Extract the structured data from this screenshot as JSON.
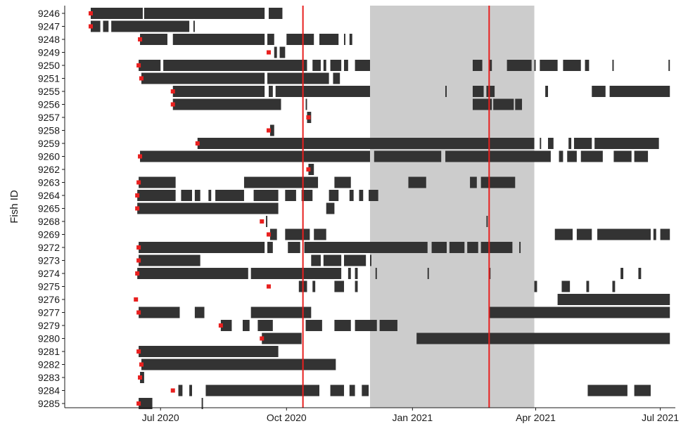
{
  "chart_data": {
    "type": "timeline",
    "ylabel": "Fish ID",
    "xlabel": "",
    "xlim": [
      "2020-04-22",
      "2021-07-12"
    ],
    "x_ticks": [
      {
        "date": "2020-07-01",
        "label": "Jul 2020"
      },
      {
        "date": "2020-10-01",
        "label": "Oct 2020"
      },
      {
        "date": "2021-01-01",
        "label": "Jan 2021"
      },
      {
        "date": "2021-04-01",
        "label": "Apr 2021"
      },
      {
        "date": "2021-07-01",
        "label": "Jul 2021"
      }
    ],
    "shaded_period": {
      "start": "2020-12-01",
      "end": "2021-03-31",
      "color": "#cccccc"
    },
    "reference_lines": [
      {
        "date": "2020-10-13",
        "color": "#e8201f"
      },
      {
        "date": "2021-02-26",
        "color": "#e8201f"
      }
    ],
    "colors": {
      "detection": "#333333",
      "tagging": "#e8201f"
    },
    "fish": [
      {
        "id": "9246",
        "tagged": "2020-05-11",
        "detections": [
          [
            "2020-05-11",
            "2020-06-18"
          ],
          [
            "2020-06-19",
            "2020-09-15"
          ],
          [
            "2020-09-18",
            "2020-09-28"
          ]
        ]
      },
      {
        "id": "9247",
        "tagged": "2020-05-11",
        "detections": [
          [
            "2020-05-11",
            "2020-05-18"
          ],
          [
            "2020-05-20",
            "2020-05-24"
          ],
          [
            "2020-05-26",
            "2020-07-22"
          ],
          [
            "2020-07-25",
            "2020-07-26"
          ]
        ]
      },
      {
        "id": "9248",
        "tagged": "2020-06-16",
        "detections": [
          [
            "2020-06-16",
            "2020-07-06"
          ],
          [
            "2020-07-10",
            "2020-09-15"
          ],
          [
            "2020-09-17",
            "2020-09-22"
          ],
          [
            "2020-10-01",
            "2020-10-21"
          ],
          [
            "2020-10-25",
            "2020-11-08"
          ],
          [
            "2020-11-12",
            "2020-11-13"
          ],
          [
            "2020-11-16",
            "2020-11-18"
          ]
        ]
      },
      {
        "id": "9249",
        "tagged": "2020-09-18",
        "detections": [
          [
            "2020-09-22",
            "2020-09-24"
          ],
          [
            "2020-09-26",
            "2020-09-30"
          ]
        ]
      },
      {
        "id": "9250",
        "tagged": "2020-06-15",
        "detections": [
          [
            "2020-06-15",
            "2020-07-01"
          ],
          [
            "2020-07-03",
            "2020-10-16"
          ],
          [
            "2020-10-20",
            "2020-10-26"
          ],
          [
            "2020-10-28",
            "2020-10-30"
          ],
          [
            "2020-11-02",
            "2020-11-10"
          ],
          [
            "2020-11-12",
            "2020-11-15"
          ],
          [
            "2020-11-20",
            "2020-12-01"
          ],
          [
            "2021-02-14",
            "2021-02-21"
          ],
          [
            "2021-02-26",
            "2021-02-28"
          ],
          [
            "2021-03-11",
            "2021-03-29"
          ],
          [
            "2021-03-31",
            "2021-04-01"
          ],
          [
            "2021-04-04",
            "2021-04-17"
          ],
          [
            "2021-04-21",
            "2021-05-04"
          ],
          [
            "2021-05-07",
            "2021-05-10"
          ],
          [
            "2021-05-27",
            "2021-05-28"
          ],
          [
            "2021-07-07",
            "2021-07-08"
          ]
        ]
      },
      {
        "id": "9251",
        "tagged": "2020-06-17",
        "detections": [
          [
            "2020-06-17",
            "2020-09-15"
          ],
          [
            "2020-09-17",
            "2020-11-01"
          ],
          [
            "2020-11-04",
            "2020-11-09"
          ]
        ]
      },
      {
        "id": "9255",
        "tagged": "2020-07-10",
        "detections": [
          [
            "2020-07-10",
            "2020-09-15"
          ],
          [
            "2020-09-18",
            "2020-09-21"
          ],
          [
            "2020-09-23",
            "2020-12-01"
          ],
          [
            "2021-01-25",
            "2021-01-26"
          ],
          [
            "2021-02-14",
            "2021-02-22"
          ],
          [
            "2021-02-24",
            "2021-03-02"
          ],
          [
            "2021-04-08",
            "2021-04-10"
          ],
          [
            "2021-05-12",
            "2021-05-22"
          ],
          [
            "2021-05-25",
            "2021-07-08"
          ]
        ]
      },
      {
        "id": "9256",
        "tagged": "2020-07-10",
        "detections": [
          [
            "2020-07-10",
            "2020-09-27"
          ],
          [
            "2020-10-15",
            "2020-10-16"
          ],
          [
            "2021-02-14",
            "2021-02-28"
          ],
          [
            "2021-03-01",
            "2021-03-16"
          ],
          [
            "2021-03-17",
            "2021-03-22"
          ]
        ]
      },
      {
        "id": "9257",
        "tagged": "2020-10-17",
        "detections": [
          [
            "2020-10-16",
            "2020-10-19"
          ]
        ]
      },
      {
        "id": "9258",
        "tagged": "2020-09-18",
        "detections": [
          [
            "2020-09-19",
            "2020-09-22"
          ]
        ]
      },
      {
        "id": "9259",
        "tagged": "2020-07-28",
        "detections": [
          [
            "2020-07-28",
            "2021-03-31"
          ],
          [
            "2021-04-04",
            "2021-04-05"
          ],
          [
            "2021-04-10",
            "2021-04-14"
          ],
          [
            "2021-04-25",
            "2021-04-27"
          ],
          [
            "2021-04-29",
            "2021-05-12"
          ],
          [
            "2021-05-14",
            "2021-06-30"
          ]
        ]
      },
      {
        "id": "9260",
        "tagged": "2020-06-16",
        "detections": [
          [
            "2020-06-16",
            "2020-12-01"
          ],
          [
            "2020-12-04",
            "2021-01-22"
          ],
          [
            "2021-01-25",
            "2021-04-12"
          ],
          [
            "2021-04-18",
            "2021-04-21"
          ],
          [
            "2021-04-24",
            "2021-05-01"
          ],
          [
            "2021-05-04",
            "2021-05-20"
          ],
          [
            "2021-05-28",
            "2021-06-10"
          ],
          [
            "2021-06-12",
            "2021-06-22"
          ]
        ]
      },
      {
        "id": "9262",
        "tagged": "2020-10-17",
        "detections": [
          [
            "2020-10-17",
            "2020-10-21"
          ]
        ]
      },
      {
        "id": "9263",
        "tagged": "2020-06-15",
        "detections": [
          [
            "2020-06-15",
            "2020-07-12"
          ],
          [
            "2020-08-31",
            "2020-10-24"
          ],
          [
            "2020-11-05",
            "2020-11-17"
          ],
          [
            "2020-12-29",
            "2021-01-11"
          ],
          [
            "2021-02-12",
            "2021-02-17"
          ],
          [
            "2021-02-20",
            "2021-03-17"
          ]
        ]
      },
      {
        "id": "9264",
        "tagged": "2020-06-14",
        "detections": [
          [
            "2020-06-14",
            "2020-07-12"
          ],
          [
            "2020-07-16",
            "2020-07-24"
          ],
          [
            "2020-07-26",
            "2020-07-30"
          ],
          [
            "2020-08-05",
            "2020-08-07"
          ],
          [
            "2020-08-10",
            "2020-08-31"
          ],
          [
            "2020-09-07",
            "2020-09-25"
          ],
          [
            "2020-09-30",
            "2020-10-08"
          ],
          [
            "2020-10-12",
            "2020-10-20"
          ],
          [
            "2020-11-01",
            "2020-11-08"
          ],
          [
            "2020-11-16",
            "2020-11-19"
          ],
          [
            "2020-11-23",
            "2020-11-26"
          ],
          [
            "2020-11-30",
            "2020-12-07"
          ]
        ]
      },
      {
        "id": "9265",
        "tagged": "2020-06-14",
        "detections": [
          [
            "2020-06-14",
            "2020-09-25"
          ],
          [
            "2020-10-30",
            "2020-11-05"
          ]
        ]
      },
      {
        "id": "9268",
        "tagged": "2020-09-13",
        "detections": [
          [
            "2020-09-16",
            "2020-09-17"
          ],
          [
            "2021-02-24",
            "2021-02-25"
          ]
        ]
      },
      {
        "id": "9269",
        "tagged": "2020-09-18",
        "detections": [
          [
            "2020-09-19",
            "2020-09-24"
          ],
          [
            "2020-09-30",
            "2020-10-18"
          ],
          [
            "2020-10-21",
            "2020-10-30"
          ],
          [
            "2021-04-15",
            "2021-04-28"
          ],
          [
            "2021-05-01",
            "2021-05-12"
          ],
          [
            "2021-05-16",
            "2021-06-24"
          ],
          [
            "2021-06-26",
            "2021-06-28"
          ],
          [
            "2021-07-01",
            "2021-07-08"
          ]
        ]
      },
      {
        "id": "9272",
        "tagged": "2020-06-15",
        "detections": [
          [
            "2020-06-15",
            "2020-09-15"
          ],
          [
            "2020-09-17",
            "2020-09-21"
          ],
          [
            "2020-10-02",
            "2020-10-11"
          ],
          [
            "2020-10-14",
            "2021-01-12"
          ],
          [
            "2021-01-15",
            "2021-01-26"
          ],
          [
            "2021-01-28",
            "2021-02-08"
          ],
          [
            "2021-02-10",
            "2021-02-18"
          ],
          [
            "2021-02-20",
            "2021-03-15"
          ],
          [
            "2021-03-20",
            "2021-03-21"
          ]
        ]
      },
      {
        "id": "9273",
        "tagged": "2020-06-15",
        "detections": [
          [
            "2020-06-15",
            "2020-07-30"
          ],
          [
            "2020-10-19",
            "2020-10-26"
          ],
          [
            "2020-10-28",
            "2020-11-10"
          ],
          [
            "2020-11-12",
            "2020-11-28"
          ],
          [
            "2020-12-01",
            "2020-12-02"
          ]
        ]
      },
      {
        "id": "9274",
        "tagged": "2020-06-14",
        "detections": [
          [
            "2020-06-14",
            "2020-09-03"
          ],
          [
            "2020-09-05",
            "2020-11-10"
          ],
          [
            "2020-11-15",
            "2020-11-17"
          ],
          [
            "2020-11-20",
            "2020-11-22"
          ],
          [
            "2020-12-05",
            "2020-12-06"
          ],
          [
            "2021-01-12",
            "2021-01-13"
          ],
          [
            "2021-02-26",
            "2021-02-27"
          ],
          [
            "2021-06-02",
            "2021-06-04"
          ],
          [
            "2021-06-15",
            "2021-06-17"
          ]
        ]
      },
      {
        "id": "9275",
        "tagged": "2020-09-18",
        "detections": [
          [
            "2020-10-10",
            "2020-10-16"
          ],
          [
            "2020-10-20",
            "2020-10-22"
          ],
          [
            "2020-11-05",
            "2020-11-12"
          ],
          [
            "2020-11-20",
            "2020-11-22"
          ],
          [
            "2021-03-31",
            "2021-04-02"
          ],
          [
            "2021-04-20",
            "2021-04-26"
          ],
          [
            "2021-05-08",
            "2021-05-10"
          ],
          [
            "2021-05-27",
            "2021-05-29"
          ]
        ]
      },
      {
        "id": "9276",
        "tagged": "2020-06-13",
        "detections": [
          [
            "2021-04-17",
            "2021-07-08"
          ]
        ]
      },
      {
        "id": "9277",
        "tagged": "2020-06-15",
        "detections": [
          [
            "2020-06-15",
            "2020-07-15"
          ],
          [
            "2020-07-26",
            "2020-08-02"
          ],
          [
            "2020-09-05",
            "2020-10-19"
          ],
          [
            "2021-02-26",
            "2021-07-08"
          ]
        ]
      },
      {
        "id": "9279",
        "tagged": "2020-08-14",
        "detections": [
          [
            "2020-08-14",
            "2020-08-22"
          ],
          [
            "2020-08-30",
            "2020-09-04"
          ],
          [
            "2020-09-10",
            "2020-09-21"
          ],
          [
            "2020-10-15",
            "2020-10-27"
          ],
          [
            "2020-11-05",
            "2020-11-17"
          ],
          [
            "2020-11-20",
            "2020-12-06"
          ],
          [
            "2020-12-08",
            "2020-12-21"
          ]
        ]
      },
      {
        "id": "9280",
        "tagged": "2020-09-13",
        "detections": [
          [
            "2020-09-13",
            "2020-10-12"
          ],
          [
            "2021-01-04",
            "2021-07-08"
          ]
        ]
      },
      {
        "id": "9281",
        "tagged": "2020-06-15",
        "detections": [
          [
            "2020-06-15",
            "2020-09-25"
          ]
        ]
      },
      {
        "id": "9282",
        "tagged": "2020-06-17",
        "detections": [
          [
            "2020-06-17",
            "2020-11-06"
          ]
        ]
      },
      {
        "id": "9283",
        "tagged": "2020-06-16",
        "detections": [
          [
            "2020-06-16",
            "2020-06-19"
          ]
        ]
      },
      {
        "id": "9284",
        "tagged": "2020-07-10",
        "detections": [
          [
            "2020-07-14",
            "2020-07-17"
          ],
          [
            "2020-07-22",
            "2020-07-24"
          ],
          [
            "2020-08-03",
            "2020-10-25"
          ],
          [
            "2020-11-02",
            "2020-11-12"
          ],
          [
            "2020-11-16",
            "2020-11-20"
          ],
          [
            "2020-11-25",
            "2020-11-30"
          ],
          [
            "2021-05-09",
            "2021-06-07"
          ],
          [
            "2021-06-12",
            "2021-06-24"
          ]
        ]
      },
      {
        "id": "9285",
        "tagged": "2020-06-15",
        "detections": [
          [
            "2020-06-15",
            "2020-06-25"
          ],
          [
            "2020-07-31",
            "2020-08-01"
          ]
        ]
      }
    ]
  }
}
